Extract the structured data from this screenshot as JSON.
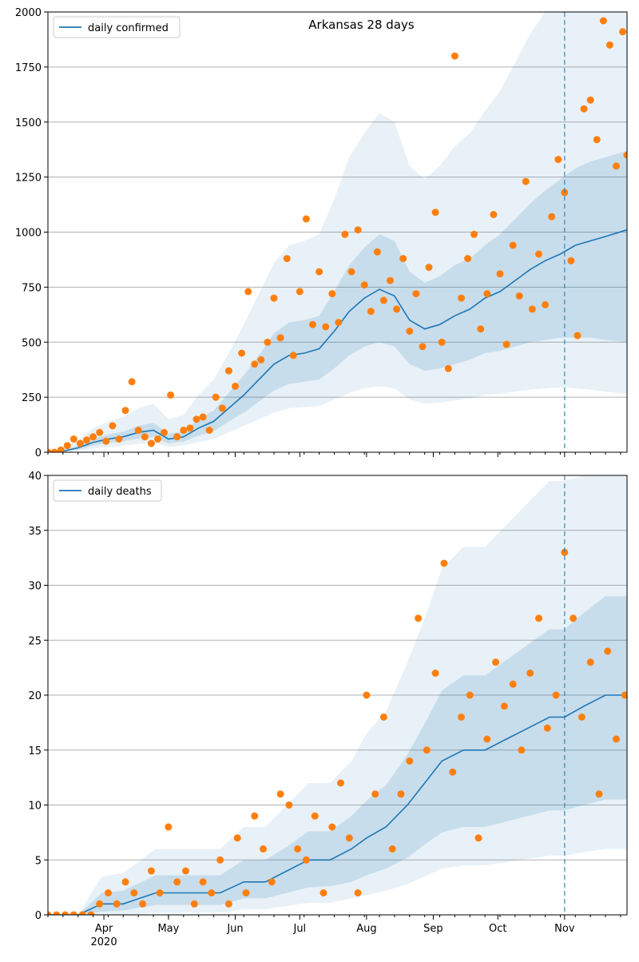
{
  "figure": {
    "background": "#ffffff"
  },
  "colors": {
    "line": "#1f77b4",
    "points": "#ff7f0e",
    "band": "#1f77b4",
    "grid": "#b0b0b0",
    "vline": "#1f77b4"
  },
  "x_axis": {
    "start": "2020-03-06",
    "end": "2020-11-30",
    "ticks": [
      {
        "date": "2020-04-01",
        "label": "Apr"
      },
      {
        "date": "2020-05-01",
        "label": "May"
      },
      {
        "date": "2020-06-01",
        "label": "Jun"
      },
      {
        "date": "2020-07-01",
        "label": "Jul"
      },
      {
        "date": "2020-08-01",
        "label": "Aug"
      },
      {
        "date": "2020-09-01",
        "label": "Sep"
      },
      {
        "date": "2020-10-01",
        "label": "Oct"
      },
      {
        "date": "2020-11-01",
        "label": "Nov"
      }
    ],
    "year_label": "2020",
    "marker_date": "2020-11-01"
  },
  "chart_data": [
    {
      "type": "line",
      "title": "Arkansas 28 days",
      "legend": "daily confirmed",
      "legend_position": "top-left",
      "ylim": [
        0,
        2000
      ],
      "yticks": [
        "0",
        "250",
        "500",
        "750",
        "1000",
        "1250",
        "1500",
        "1750",
        "2000"
      ],
      "grid": true,
      "line_x": [
        "2020-03-06",
        "2020-03-13",
        "2020-03-20",
        "2020-03-27",
        "2020-04-03",
        "2020-04-10",
        "2020-04-17",
        "2020-04-24",
        "2020-05-01",
        "2020-05-08",
        "2020-05-15",
        "2020-05-22",
        "2020-05-29",
        "2020-06-05",
        "2020-06-12",
        "2020-06-19",
        "2020-06-26",
        "2020-07-03",
        "2020-07-10",
        "2020-07-17",
        "2020-07-24",
        "2020-07-31",
        "2020-08-07",
        "2020-08-14",
        "2020-08-21",
        "2020-08-28",
        "2020-09-04",
        "2020-09-11",
        "2020-09-18",
        "2020-09-25",
        "2020-10-02",
        "2020-10-09",
        "2020-10-16",
        "2020-10-23",
        "2020-10-30",
        "2020-11-06",
        "2020-11-13",
        "2020-11-20",
        "2020-11-30"
      ],
      "line_y": [
        0,
        5,
        20,
        45,
        60,
        70,
        90,
        100,
        60,
        70,
        110,
        140,
        200,
        260,
        330,
        400,
        440,
        450,
        470,
        550,
        640,
        700,
        740,
        710,
        600,
        560,
        580,
        620,
        650,
        700,
        730,
        780,
        830,
        870,
        900,
        940,
        960,
        980,
        1010
      ],
      "bands": [
        {
          "lower": [
            0,
            3,
            12,
            30,
            42,
            50,
            62,
            70,
            40,
            48,
            75,
            95,
            140,
            180,
            230,
            280,
            310,
            320,
            330,
            380,
            440,
            480,
            500,
            480,
            400,
            370,
            380,
            400,
            420,
            450,
            460,
            480,
            500,
            510,
            520,
            520,
            520,
            510,
            500
          ],
          "upper": [
            0,
            8,
            30,
            62,
            80,
            94,
            120,
            134,
            84,
            96,
            150,
            190,
            270,
            350,
            440,
            540,
            590,
            600,
            620,
            730,
            850,
            930,
            990,
            960,
            820,
            770,
            800,
            850,
            880,
            940,
            990,
            1060,
            1130,
            1190,
            1240,
            1290,
            1320,
            1340,
            1370
          ]
        },
        {
          "lower": [
            0,
            1,
            6,
            16,
            24,
            30,
            38,
            44,
            24,
            30,
            46,
            60,
            90,
            120,
            150,
            180,
            200,
            205,
            210,
            240,
            270,
            290,
            300,
            290,
            240,
            220,
            225,
            235,
            245,
            260,
            265,
            275,
            285,
            290,
            295,
            290,
            285,
            275,
            265
          ],
          "upper": [
            0,
            15,
            55,
            110,
            140,
            160,
            200,
            220,
            150,
            170,
            260,
            330,
            450,
            580,
            720,
            860,
            940,
            960,
            990,
            1150,
            1340,
            1450,
            1540,
            1500,
            1300,
            1240,
            1300,
            1390,
            1450,
            1550,
            1640,
            1770,
            1900,
            2000,
            2100,
            2200,
            2250,
            2300,
            2350
          ]
        }
      ],
      "points_x": [
        "2020-03-06",
        "2020-03-09",
        "2020-03-12",
        "2020-03-15",
        "2020-03-18",
        "2020-03-21",
        "2020-03-24",
        "2020-03-27",
        "2020-03-30",
        "2020-04-02",
        "2020-04-05",
        "2020-04-08",
        "2020-04-11",
        "2020-04-14",
        "2020-04-17",
        "2020-04-20",
        "2020-04-23",
        "2020-04-26",
        "2020-04-29",
        "2020-05-02",
        "2020-05-05",
        "2020-05-08",
        "2020-05-11",
        "2020-05-14",
        "2020-05-17",
        "2020-05-20",
        "2020-05-23",
        "2020-05-26",
        "2020-05-29",
        "2020-06-01",
        "2020-06-04",
        "2020-06-07",
        "2020-06-10",
        "2020-06-13",
        "2020-06-16",
        "2020-06-19",
        "2020-06-22",
        "2020-06-25",
        "2020-06-28",
        "2020-07-01",
        "2020-07-04",
        "2020-07-07",
        "2020-07-10",
        "2020-07-13",
        "2020-07-16",
        "2020-07-19",
        "2020-07-22",
        "2020-07-25",
        "2020-07-28",
        "2020-07-31",
        "2020-08-03",
        "2020-08-06",
        "2020-08-09",
        "2020-08-12",
        "2020-08-15",
        "2020-08-18",
        "2020-08-21",
        "2020-08-24",
        "2020-08-27",
        "2020-08-30",
        "2020-09-02",
        "2020-09-05",
        "2020-09-08",
        "2020-09-11",
        "2020-09-14",
        "2020-09-17",
        "2020-09-20",
        "2020-09-23",
        "2020-09-26",
        "2020-09-29",
        "2020-10-02",
        "2020-10-05",
        "2020-10-08",
        "2020-10-11",
        "2020-10-14",
        "2020-10-17",
        "2020-10-20",
        "2020-10-23",
        "2020-10-26",
        "2020-10-29",
        "2020-11-01",
        "2020-11-04",
        "2020-11-07",
        "2020-11-10",
        "2020-11-13",
        "2020-11-16",
        "2020-11-19",
        "2020-11-22",
        "2020-11-25",
        "2020-11-28",
        "2020-11-30"
      ],
      "points_y": [
        0,
        0,
        10,
        30,
        60,
        40,
        55,
        70,
        90,
        50,
        120,
        60,
        190,
        320,
        100,
        70,
        40,
        60,
        90,
        260,
        70,
        100,
        110,
        150,
        160,
        100,
        250,
        200,
        370,
        300,
        450,
        730,
        400,
        420,
        500,
        700,
        520,
        880,
        440,
        730,
        1060,
        580,
        820,
        570,
        720,
        590,
        990,
        820,
        1010,
        760,
        640,
        910,
        690,
        780,
        650,
        880,
        550,
        720,
        480,
        840,
        1090,
        500,
        380,
        1800,
        700,
        880,
        990,
        560,
        720,
        1080,
        810,
        490,
        940,
        710,
        1230,
        650,
        900,
        670,
        1070,
        1330,
        1180,
        870,
        530,
        1560,
        1600,
        1420,
        1960,
        1850,
        1300,
        1910,
        1350
      ]
    },
    {
      "type": "line",
      "legend": "daily deaths",
      "legend_position": "top-left",
      "ylim": [
        0,
        40
      ],
      "yticks": [
        "0",
        "5",
        "10",
        "15",
        "20",
        "25",
        "30",
        "35",
        "40"
      ],
      "grid": true,
      "line_x": [
        "2020-03-06",
        "2020-03-20",
        "2020-03-31",
        "2020-04-10",
        "2020-04-25",
        "2020-05-10",
        "2020-05-25",
        "2020-06-05",
        "2020-06-15",
        "2020-06-25",
        "2020-07-05",
        "2020-07-15",
        "2020-07-25",
        "2020-08-01",
        "2020-08-10",
        "2020-08-20",
        "2020-08-28",
        "2020-09-05",
        "2020-09-15",
        "2020-09-25",
        "2020-10-05",
        "2020-10-15",
        "2020-10-25",
        "2020-11-01",
        "2020-11-10",
        "2020-11-20",
        "2020-11-30"
      ],
      "line_y": [
        0,
        0,
        1,
        1,
        2,
        2,
        2,
        3,
        3,
        4,
        5,
        5,
        6,
        7,
        8,
        10,
        12,
        14,
        15,
        15,
        16,
        17,
        18,
        18,
        19,
        20,
        20
      ],
      "bands": [
        {
          "lower": [
            0,
            0,
            0.3,
            0.4,
            0.9,
            0.9,
            0.9,
            1.5,
            1.5,
            2,
            2.5,
            2.6,
            3,
            3.6,
            4.2,
            5.2,
            6.4,
            7.5,
            8,
            8,
            8.5,
            9,
            9.5,
            9.5,
            10,
            10.5,
            10.5
          ],
          "upper": [
            0,
            0,
            2,
            2.2,
            3.6,
            3.6,
            3.6,
            5,
            5,
            6.2,
            7.6,
            7.6,
            9,
            10.4,
            11.8,
            14.6,
            17.4,
            20.4,
            21.8,
            21.8,
            23.2,
            24.6,
            26,
            26,
            27.5,
            29,
            29
          ]
        },
        {
          "lower": [
            0,
            0,
            0,
            0,
            0.2,
            0.2,
            0.2,
            0.5,
            0.5,
            0.8,
            1.1,
            1.1,
            1.5,
            1.8,
            2.2,
            2.8,
            3.5,
            4.2,
            4.5,
            4.5,
            4.8,
            5.1,
            5.4,
            5.4,
            5.7,
            6,
            6
          ],
          "upper": [
            0,
            0,
            3.5,
            3.8,
            6,
            6,
            6,
            8,
            8,
            10,
            12,
            12,
            14,
            16.5,
            18.5,
            23,
            27,
            31.5,
            33.5,
            33.5,
            35.5,
            37.5,
            39.5,
            39.5,
            41,
            43,
            43
          ]
        }
      ],
      "points_x": [
        "2020-03-06",
        "2020-03-10",
        "2020-03-14",
        "2020-03-18",
        "2020-03-22",
        "2020-03-26",
        "2020-03-30",
        "2020-04-03",
        "2020-04-07",
        "2020-04-11",
        "2020-04-15",
        "2020-04-19",
        "2020-04-23",
        "2020-04-27",
        "2020-05-01",
        "2020-05-05",
        "2020-05-09",
        "2020-05-13",
        "2020-05-17",
        "2020-05-21",
        "2020-05-25",
        "2020-05-29",
        "2020-06-02",
        "2020-06-06",
        "2020-06-10",
        "2020-06-14",
        "2020-06-18",
        "2020-06-22",
        "2020-06-26",
        "2020-06-30",
        "2020-07-04",
        "2020-07-08",
        "2020-07-12",
        "2020-07-16",
        "2020-07-20",
        "2020-07-24",
        "2020-07-28",
        "2020-08-01",
        "2020-08-05",
        "2020-08-09",
        "2020-08-13",
        "2020-08-17",
        "2020-08-21",
        "2020-08-25",
        "2020-08-29",
        "2020-09-02",
        "2020-09-06",
        "2020-09-10",
        "2020-09-14",
        "2020-09-18",
        "2020-09-22",
        "2020-09-26",
        "2020-09-30",
        "2020-10-04",
        "2020-10-08",
        "2020-10-12",
        "2020-10-16",
        "2020-10-20",
        "2020-10-24",
        "2020-10-28",
        "2020-11-01",
        "2020-11-05",
        "2020-11-09",
        "2020-11-13",
        "2020-11-17",
        "2020-11-21",
        "2020-11-25",
        "2020-11-29"
      ],
      "points_y": [
        0,
        0,
        0,
        0,
        0,
        0,
        1,
        2,
        1,
        3,
        2,
        1,
        4,
        2,
        8,
        3,
        4,
        1,
        3,
        2,
        5,
        1,
        7,
        2,
        9,
        6,
        3,
        11,
        10,
        6,
        5,
        9,
        2,
        8,
        12,
        7,
        2,
        20,
        11,
        18,
        6,
        11,
        14,
        27,
        15,
        22,
        32,
        13,
        18,
        20,
        7,
        16,
        23,
        19,
        21,
        15,
        22,
        27,
        17,
        20,
        33,
        27,
        18,
        23,
        11,
        24,
        16,
        20
      ]
    }
  ]
}
